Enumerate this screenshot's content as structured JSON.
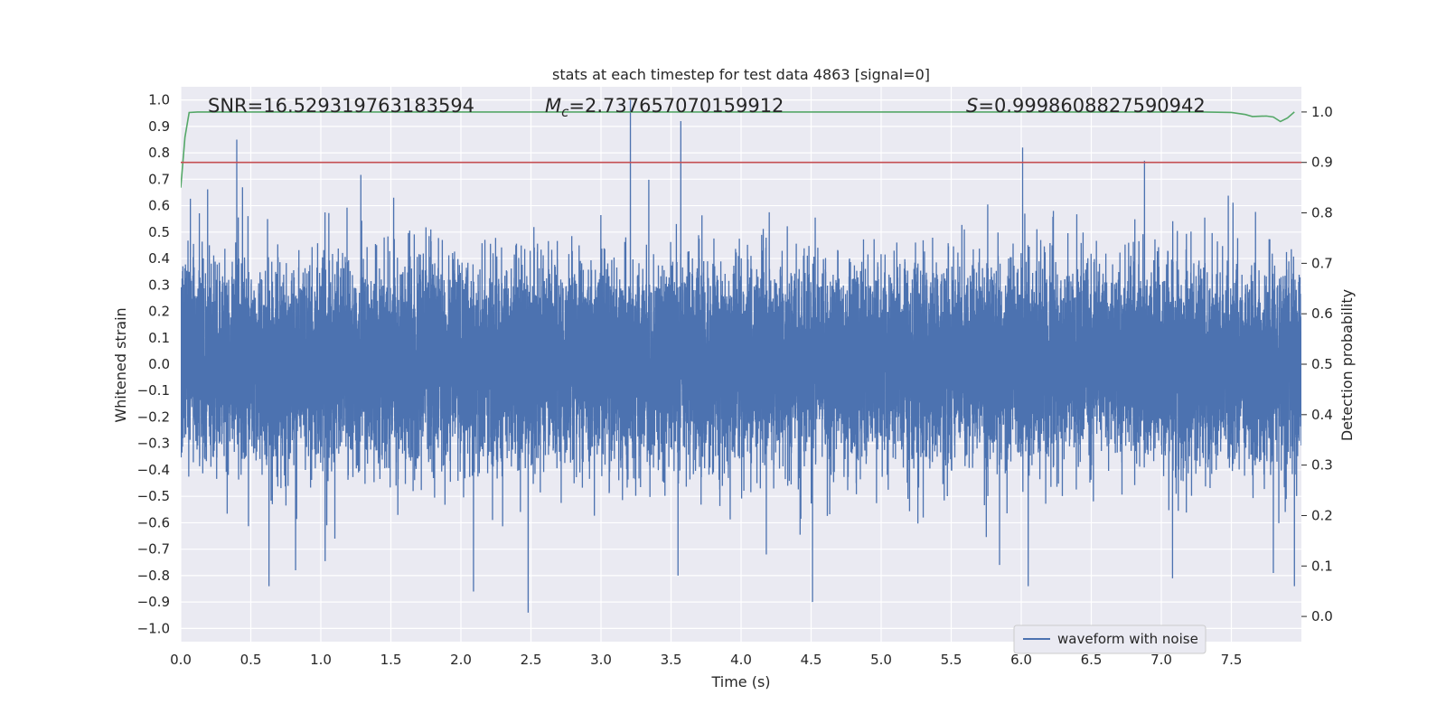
{
  "chart_data": {
    "type": "line",
    "title": "stats at each timestep for test data 4863 [signal=0]",
    "xlabel": "Time (s)",
    "ylabel": "Whitened strain",
    "y2label": "Detection probability",
    "xlim": [
      0.0,
      8.0
    ],
    "ylim": [
      -1.05,
      1.05
    ],
    "y2lim": [
      -0.05,
      1.05
    ],
    "x_ticks": [
      "0.0",
      "0.5",
      "1.0",
      "1.5",
      "2.0",
      "2.5",
      "3.0",
      "3.5",
      "4.0",
      "4.5",
      "5.0",
      "5.5",
      "6.0",
      "6.5",
      "7.0",
      "7.5"
    ],
    "y_ticks": [
      "1.0",
      "0.9",
      "0.8",
      "0.7",
      "0.6",
      "0.5",
      "0.4",
      "0.3",
      "0.2",
      "0.1",
      "0.0",
      "−0.1",
      "−0.2",
      "−0.3",
      "−0.4",
      "−0.5",
      "−0.6",
      "−0.7",
      "−0.8",
      "−0.9",
      "−1.0"
    ],
    "y2_ticks": [
      "1.0",
      "0.9",
      "0.8",
      "0.7",
      "0.6",
      "0.5",
      "0.4",
      "0.3",
      "0.2",
      "0.1",
      "0.0"
    ],
    "annotations": {
      "snr": "SNR=16.529319763183594",
      "mc_symbol": "M",
      "mc_sub": "c",
      "mc_value": "=2.737657070159912",
      "s_symbol": "S",
      "s_value": "=0.9998608827590942"
    },
    "legend": {
      "location": "lower-right",
      "entries": [
        "waveform with noise"
      ]
    },
    "grid": true,
    "series": [
      {
        "name": "waveform with noise",
        "axis": "left",
        "color": "#4c72b0",
        "sample_rate": 2048,
        "duration": 8.0,
        "noise_std": 0.18,
        "peaks": [
          [
            0.4,
            0.85
          ],
          [
            0.63,
            -0.84
          ],
          [
            0.82,
            -0.78
          ],
          [
            1.1,
            -0.66
          ],
          [
            1.52,
            0.63
          ],
          [
            1.82,
            -0.17
          ],
          [
            2.09,
            -0.86
          ],
          [
            2.48,
            -0.94
          ],
          [
            3.21,
            1.0
          ],
          [
            3.57,
            0.92
          ],
          [
            3.55,
            -0.8
          ],
          [
            4.18,
            -0.72
          ],
          [
            4.51,
            -0.9
          ],
          [
            6.01,
            0.82
          ],
          [
            6.05,
            -0.84
          ],
          [
            6.88,
            0.77
          ],
          [
            7.08,
            -0.81
          ],
          [
            7.8,
            -0.79
          ],
          [
            7.95,
            -0.84
          ]
        ]
      },
      {
        "name": "",
        "axis": "right",
        "color": "#55a868",
        "x": [
          0.0,
          0.03,
          0.06,
          0.12,
          0.3,
          1.0,
          2.0,
          3.0,
          4.0,
          5.0,
          6.0,
          7.0,
          7.3,
          7.5,
          7.6,
          7.65,
          7.75,
          7.8,
          7.85,
          7.9,
          7.95
        ],
        "y": [
          0.85,
          0.95,
          0.999,
          1.0,
          1.0,
          1.0,
          1.0,
          1.0,
          1.0,
          1.0,
          1.0,
          1.0,
          1.0,
          0.999,
          0.995,
          0.991,
          0.992,
          0.99,
          0.981,
          0.988,
          1.0
        ]
      },
      {
        "name": "",
        "axis": "right",
        "color": "#c44e52",
        "x": [
          0.0,
          8.0
        ],
        "y": [
          0.9,
          0.9
        ]
      }
    ]
  }
}
